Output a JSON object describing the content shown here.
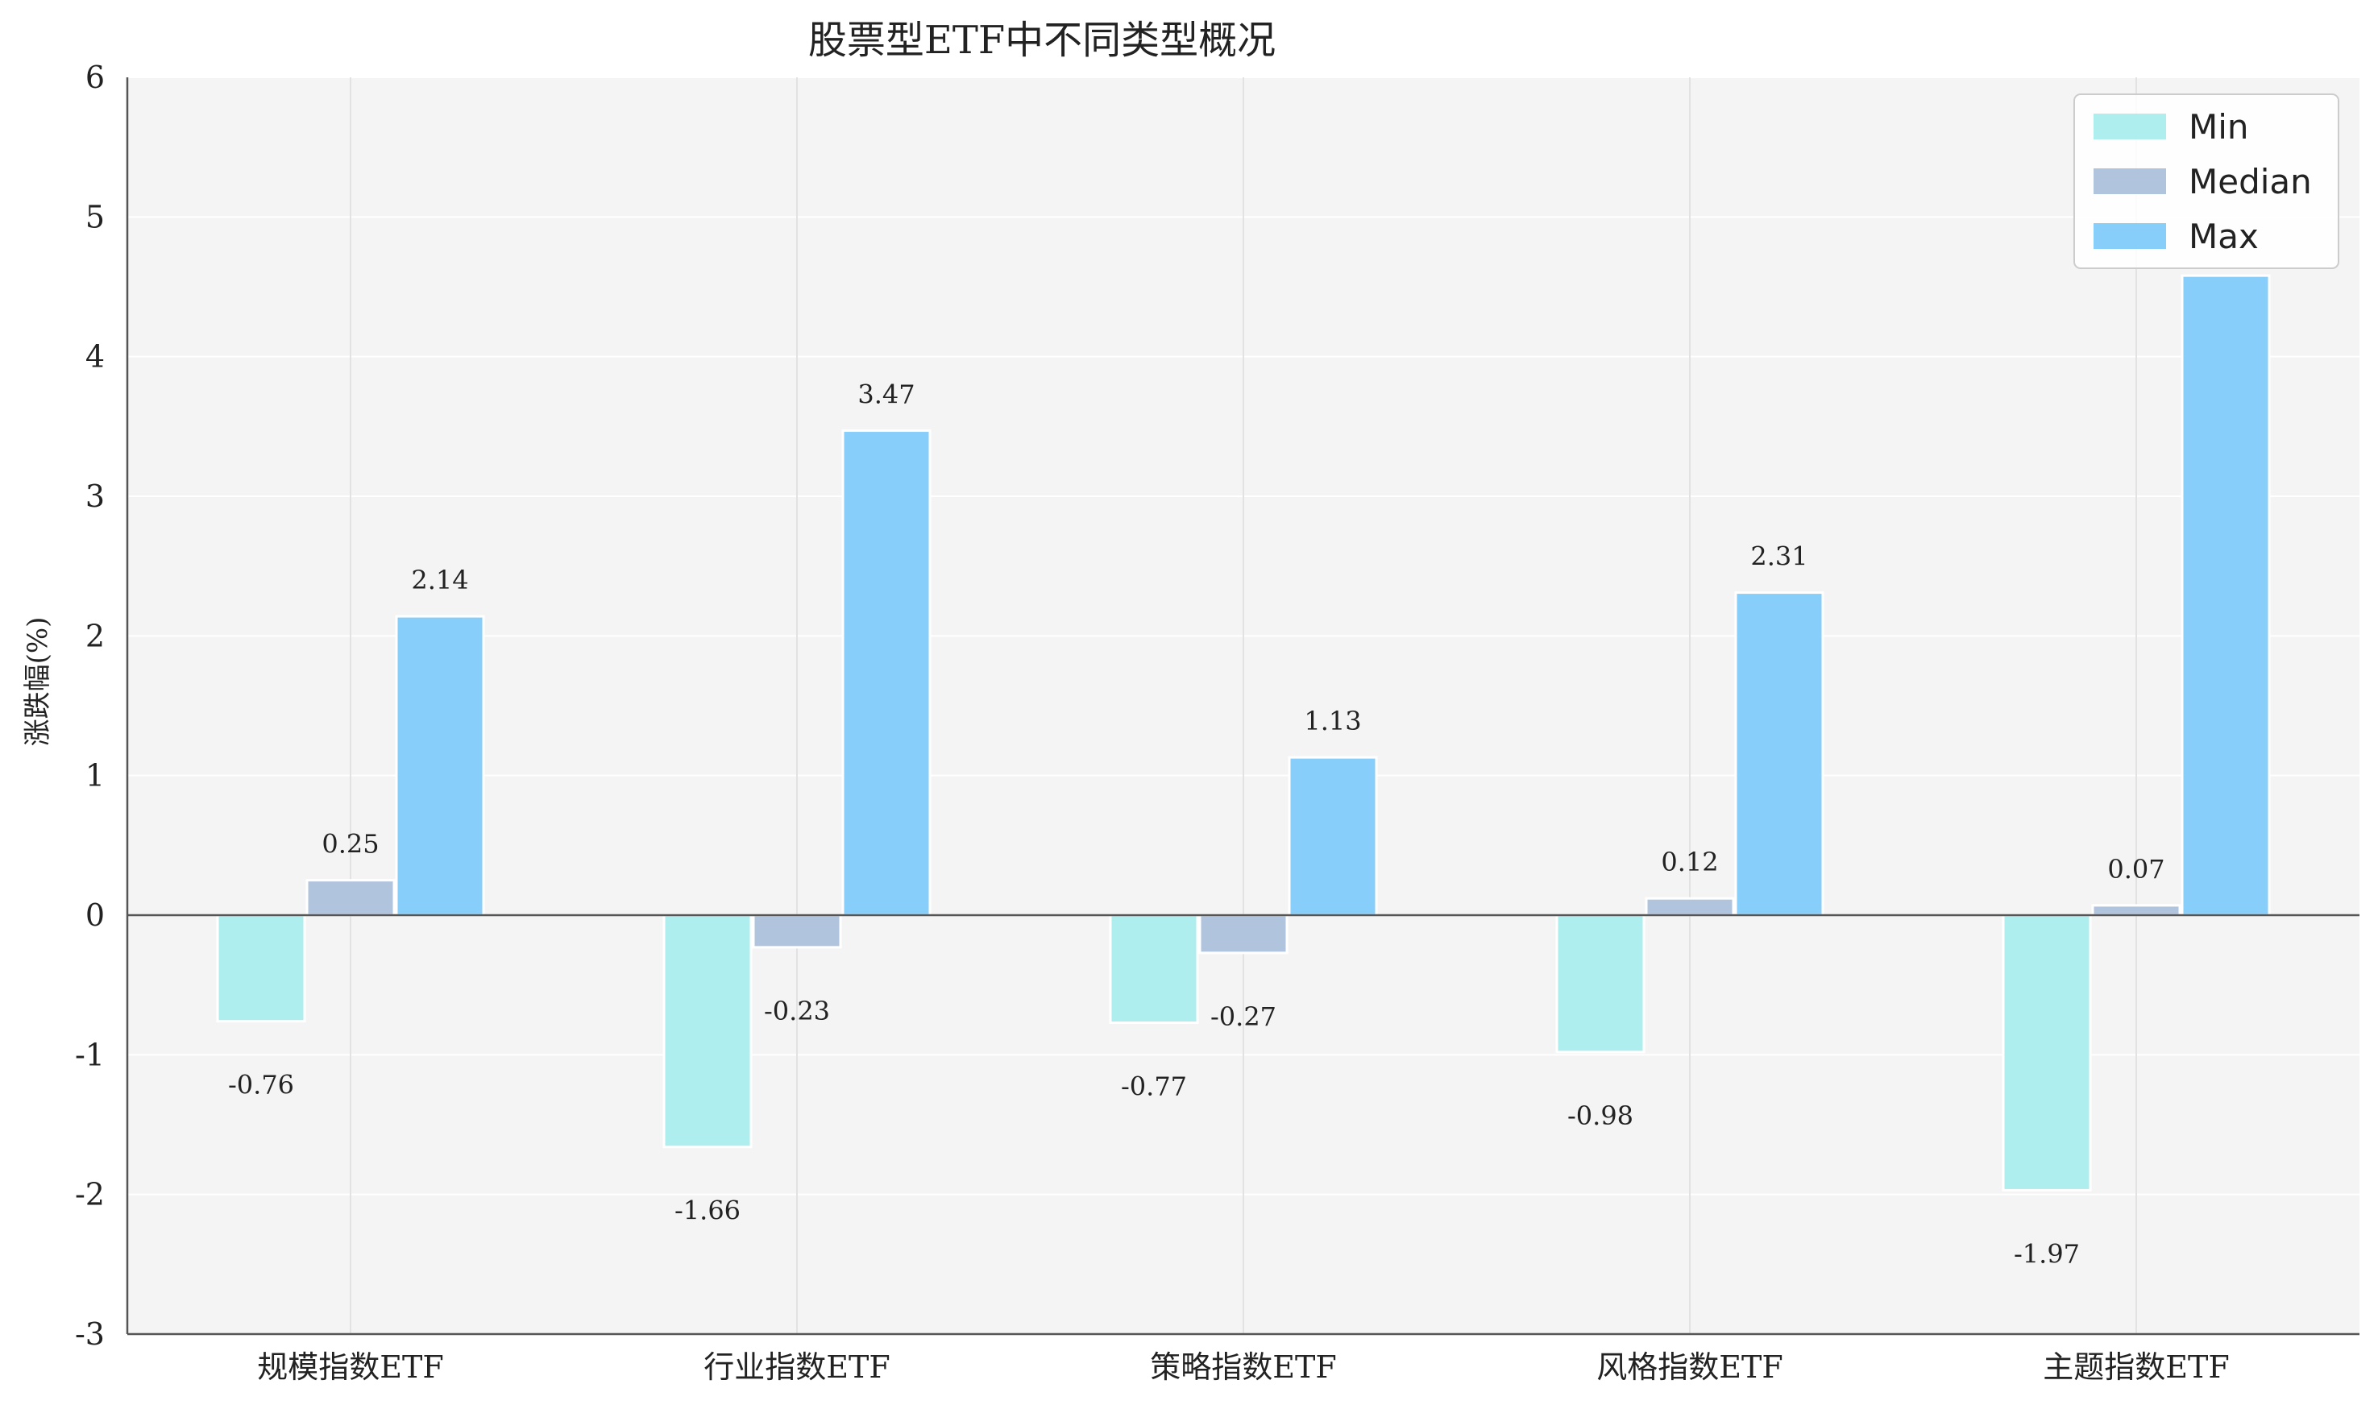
{
  "chart_data": {
    "type": "bar",
    "title": "股票型ETF中不同类型概况",
    "xlabel": "",
    "ylabel": "涨跌幅(%)",
    "ylim": [
      -3,
      6
    ],
    "yticks": [
      -3,
      -2,
      -1,
      0,
      1,
      2,
      3,
      4,
      5,
      6
    ],
    "categories": [
      "规模指数ETF",
      "行业指数ETF",
      "策略指数ETF",
      "风格指数ETF",
      "主题指数ETF"
    ],
    "series": [
      {
        "name": "Min",
        "color": "#afeeee",
        "values": [
          -0.76,
          -1.66,
          -0.77,
          -0.98,
          -1.97
        ],
        "labels": [
          "-0.76",
          "-1.66",
          "-0.77",
          "-0.98",
          "-1.97"
        ]
      },
      {
        "name": "Median",
        "color": "#b0c4de",
        "values": [
          0.25,
          -0.23,
          -0.27,
          0.12,
          0.07
        ],
        "labels": [
          "0.25",
          "-0.23",
          "-0.27",
          "0.12",
          "0.07"
        ]
      },
      {
        "name": "Max",
        "color": "#87cefa",
        "values": [
          2.14,
          3.47,
          1.13,
          2.31,
          4.58
        ],
        "labels": [
          "2.14",
          "3.47",
          "1.13",
          "2.31",
          ""
        ]
      }
    ],
    "grid": true,
    "legend": "top-right",
    "background": "#f4f4f4"
  }
}
